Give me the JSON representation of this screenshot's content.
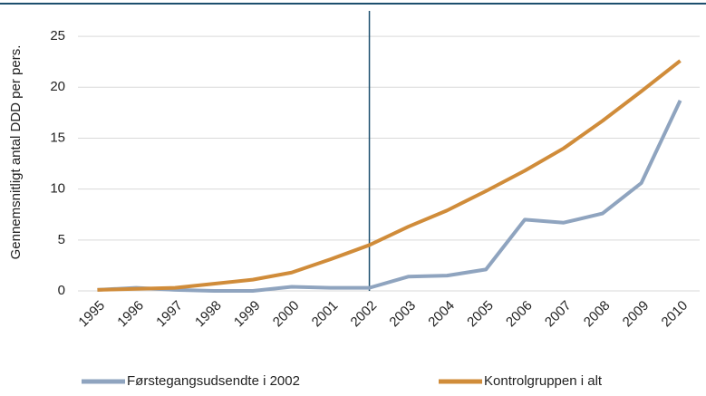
{
  "chart_data": {
    "type": "line",
    "y_label": "Gennemsnitligt antal DDD per pers.",
    "categories": [
      "1995",
      "1996",
      "1997",
      "1998",
      "1999",
      "2000",
      "2001",
      "2002",
      "2003",
      "2004",
      "2005",
      "2006",
      "2007",
      "2008",
      "2009",
      "2010"
    ],
    "series": [
      {
        "name": "Førstegangsudsendte i 2002",
        "color": "#8fa4bf",
        "values": [
          0.1,
          0.3,
          0.1,
          0.0,
          0.0,
          0.4,
          0.3,
          0.3,
          1.4,
          1.5,
          2.1,
          7.0,
          6.7,
          7.6,
          10.6,
          18.7
        ]
      },
      {
        "name": "Kontrolgruppen i alt",
        "color": "#d08c3a",
        "values": [
          0.1,
          0.2,
          0.3,
          0.7,
          1.1,
          1.8,
          3.1,
          4.5,
          6.3,
          7.9,
          9.8,
          11.8,
          14.0,
          16.7,
          19.6,
          22.6
        ]
      }
    ],
    "vline_category": "2002",
    "ylim": [
      0,
      27.5
    ],
    "yticks": [
      0,
      5,
      10,
      15,
      20,
      25
    ],
    "grid": true
  }
}
